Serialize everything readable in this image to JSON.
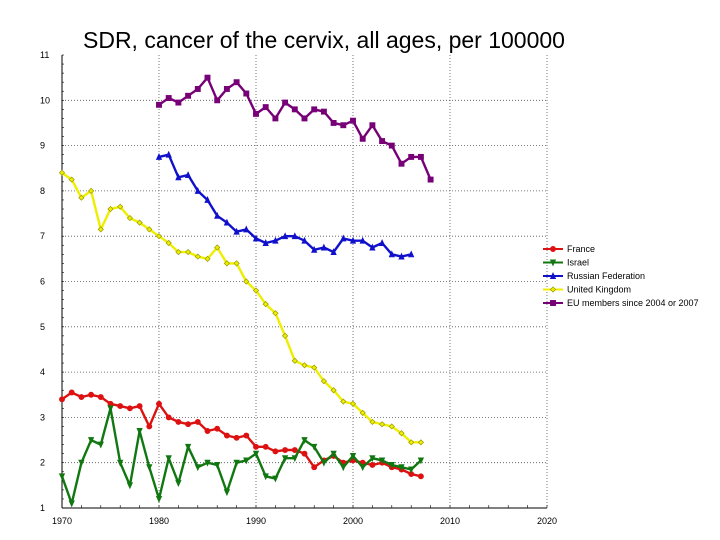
{
  "chart_data": {
    "type": "line",
    "title": "SDR, cancer of the cervix, all ages, per 100000",
    "xlabel": "",
    "ylabel": "",
    "xlim": [
      1970,
      2020
    ],
    "ylim": [
      1,
      11
    ],
    "x_ticks": [
      1970,
      1980,
      1990,
      2000,
      2010,
      2020
    ],
    "y_ticks": [
      1,
      2,
      3,
      4,
      5,
      6,
      7,
      8,
      9,
      10,
      11
    ],
    "grid": true,
    "legend_position": "right",
    "series": [
      {
        "name": "France",
        "color": "#dd1111",
        "marker": "circle",
        "x": [
          1970,
          1971,
          1972,
          1973,
          1974,
          1975,
          1976,
          1977,
          1978,
          1979,
          1980,
          1981,
          1982,
          1983,
          1984,
          1985,
          1986,
          1987,
          1988,
          1989,
          1990,
          1991,
          1992,
          1993,
          1994,
          1995,
          1996,
          1997,
          1998,
          1999,
          2000,
          2001,
          2002,
          2003,
          2004,
          2005,
          2006,
          2007
        ],
        "values": [
          3.4,
          3.55,
          3.45,
          3.5,
          3.45,
          3.3,
          3.25,
          3.2,
          3.25,
          2.8,
          3.3,
          3.0,
          2.9,
          2.85,
          2.9,
          2.7,
          2.75,
          2.6,
          2.55,
          2.6,
          2.35,
          2.35,
          2.25,
          2.28,
          2.28,
          2.2,
          1.9,
          2.05,
          2.15,
          2.0,
          2.05,
          2.0,
          1.95,
          2.0,
          1.9,
          1.85,
          1.75,
          1.7
        ]
      },
      {
        "name": "Israel",
        "color": "#117711",
        "marker": "triangle-down",
        "x": [
          1970,
          1971,
          1972,
          1973,
          1974,
          1975,
          1976,
          1977,
          1978,
          1979,
          1980,
          1981,
          1982,
          1983,
          1984,
          1985,
          1986,
          1987,
          1988,
          1989,
          1990,
          1991,
          1992,
          1993,
          1994,
          1995,
          1996,
          1997,
          1998,
          1999,
          2000,
          2001,
          2002,
          2003,
          2004,
          2005,
          2006,
          2007
        ],
        "values": [
          1.7,
          1.1,
          2.0,
          2.5,
          2.4,
          3.2,
          2.0,
          1.5,
          2.7,
          1.9,
          1.2,
          2.1,
          1.55,
          2.35,
          1.9,
          2.0,
          1.95,
          1.35,
          2.0,
          2.05,
          2.2,
          1.7,
          1.65,
          2.1,
          2.1,
          2.5,
          2.35,
          2.0,
          2.2,
          1.9,
          2.15,
          1.9,
          2.1,
          2.05,
          1.95,
          1.9,
          1.85,
          2.05
        ]
      },
      {
        "name": "Russian Federation",
        "color": "#1111cc",
        "marker": "triangle-up",
        "x": [
          1980,
          1981,
          1982,
          1983,
          1984,
          1985,
          1986,
          1987,
          1988,
          1989,
          1990,
          1991,
          1992,
          1993,
          1994,
          1995,
          1996,
          1997,
          1998,
          1999,
          2000,
          2001,
          2002,
          2003,
          2004,
          2005,
          2006
        ],
        "values": [
          8.75,
          8.8,
          8.3,
          8.35,
          8.0,
          7.8,
          7.45,
          7.3,
          7.1,
          7.15,
          6.95,
          6.85,
          6.9,
          7.0,
          7.0,
          6.9,
          6.7,
          6.75,
          6.65,
          6.95,
          6.9,
          6.9,
          6.75,
          6.85,
          6.6,
          6.55,
          6.6
        ]
      },
      {
        "name": "United Kingdom",
        "color": "#eeee00",
        "marker": "diamond",
        "x": [
          1970,
          1971,
          1972,
          1973,
          1974,
          1975,
          1976,
          1977,
          1978,
          1979,
          1980,
          1981,
          1982,
          1983,
          1984,
          1985,
          1986,
          1987,
          1988,
          1989,
          1990,
          1991,
          1992,
          1993,
          1994,
          1995,
          1996,
          1997,
          1998,
          1999,
          2000,
          2001,
          2002,
          2003,
          2004,
          2005,
          2006,
          2007
        ],
        "values": [
          8.4,
          8.25,
          7.85,
          8.0,
          7.15,
          7.6,
          7.65,
          7.4,
          7.3,
          7.15,
          7.0,
          6.85,
          6.65,
          6.65,
          6.55,
          6.5,
          6.75,
          6.4,
          6.4,
          6.0,
          5.8,
          5.5,
          5.3,
          4.8,
          4.25,
          4.15,
          4.1,
          3.8,
          3.6,
          3.35,
          3.3,
          3.1,
          2.9,
          2.85,
          2.8,
          2.65,
          2.45,
          2.45
        ]
      },
      {
        "name": "EU members since 2004 or 2007",
        "color": "#770077",
        "marker": "square",
        "x": [
          1980,
          1981,
          1982,
          1983,
          1984,
          1985,
          1986,
          1987,
          1988,
          1989,
          1990,
          1991,
          1992,
          1993,
          1994,
          1995,
          1996,
          1997,
          1998,
          1999,
          2000,
          2001,
          2002,
          2003,
          2004,
          2005,
          2006,
          2007,
          2008
        ],
        "values": [
          9.9,
          10.05,
          9.95,
          10.1,
          10.25,
          10.5,
          10.0,
          10.25,
          10.4,
          10.15,
          9.7,
          9.85,
          9.6,
          9.95,
          9.8,
          9.6,
          9.8,
          9.75,
          9.5,
          9.45,
          9.55,
          9.15,
          9.45,
          9.1,
          9.0,
          8.6,
          8.75,
          8.75,
          8.25
        ]
      }
    ]
  }
}
